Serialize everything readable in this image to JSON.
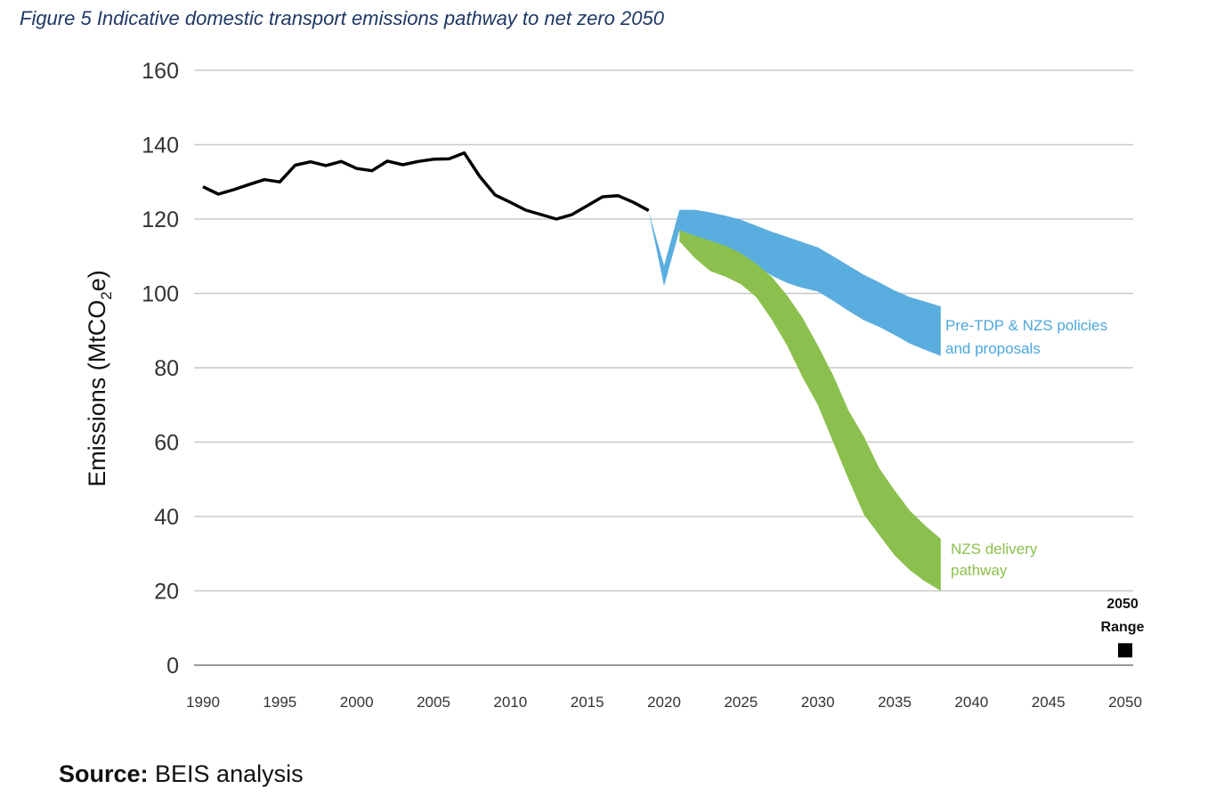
{
  "figure_title": "Figure 5 Indicative domestic transport emissions pathway to net zero 2050",
  "source": {
    "label": "Source:",
    "text": " BEIS analysis"
  },
  "colors": {
    "historic": "#000000",
    "blue_band": "#5aaedf",
    "green_band": "#8cc04e",
    "grid": "#c8c8c8",
    "title": "#1f3864"
  },
  "chart_data": {
    "type": "line",
    "title": "",
    "xlabel": "",
    "ylabel_main": "Emissions (MtCO",
    "ylabel_sub": "2",
    "ylabel_end": "e)",
    "xlim": [
      1990,
      2050
    ],
    "ylim": [
      0,
      160
    ],
    "x_ticks": [
      1990,
      1995,
      2000,
      2005,
      2010,
      2015,
      2020,
      2025,
      2030,
      2035,
      2040,
      2045,
      2050
    ],
    "y_ticks": [
      0,
      20,
      40,
      60,
      80,
      100,
      120,
      140,
      160
    ],
    "grid": true,
    "series": [
      {
        "x": [
          1990,
          1991,
          1992,
          1993,
          1994,
          1995,
          1996,
          1997,
          1998,
          1999,
          2000,
          2001,
          2002,
          2003,
          2004,
          2005,
          2006,
          2007,
          2008,
          2009,
          2010,
          2011,
          2012,
          2013,
          2014,
          2015,
          2016,
          2017,
          2018,
          2019
        ],
        "values": [
          128.7,
          126.7,
          127.9,
          129.3,
          130.6,
          130.0,
          134.5,
          135.4,
          134.4,
          135.5,
          133.6,
          133.0,
          135.6,
          134.6,
          135.5,
          136.1,
          136.2,
          137.8,
          131.5,
          126.5,
          124.5,
          122.4,
          121.2,
          120.0,
          121.2,
          123.6,
          126.0,
          126.3,
          124.5,
          122.3
        ]
      },
      {
        "name": "Pre-TDP & NZS policies and proposals",
        "x": [
          2019,
          2020,
          2021,
          2022,
          2023,
          2024,
          2025,
          2026,
          2027,
          2028,
          2029,
          2030,
          2031,
          2032,
          2033,
          2034,
          2035,
          2036,
          2037,
          2038
        ],
        "upper": [
          122.0,
          107.5,
          122.5,
          122.5,
          121.8,
          120.9,
          119.8,
          118.2,
          116.6,
          115.2,
          113.8,
          112.4,
          110.0,
          107.5,
          105.0,
          103.0,
          100.8,
          99.0,
          97.8,
          96.5
        ],
        "lower": [
          122.0,
          102.0,
          117.0,
          114.5,
          113.2,
          111.8,
          110.0,
          107.5,
          104.8,
          102.8,
          101.5,
          100.5,
          98.0,
          95.3,
          92.8,
          91.0,
          88.8,
          86.5,
          84.8,
          83.2
        ]
      },
      {
        "name": "NZS delivery pathway",
        "x": [
          2021,
          2022,
          2023,
          2024,
          2025,
          2026,
          2027,
          2028,
          2029,
          2030,
          2031,
          2032,
          2033,
          2034,
          2035,
          2036,
          2037,
          2038
        ],
        "upper": [
          117.0,
          115.5,
          114.2,
          112.8,
          110.8,
          108.0,
          104.5,
          99.5,
          93.5,
          86.0,
          78.0,
          68.5,
          61.5,
          53.0,
          47.0,
          41.5,
          37.5,
          34.0
        ],
        "lower": [
          114.0,
          109.5,
          106.0,
          104.5,
          102.5,
          99.0,
          93.0,
          86.0,
          77.5,
          70.0,
          60.0,
          50.0,
          40.5,
          35.0,
          29.5,
          25.5,
          22.5,
          20.0
        ]
      },
      {
        "name": "2050 Range",
        "x": [
          2050
        ],
        "values": [
          4
        ]
      }
    ],
    "annotations": [
      {
        "lines": [
          "Pre-TDP & NZS policies",
          "and proposals"
        ]
      },
      {
        "lines": [
          "NZS delivery",
          "pathway"
        ]
      },
      {
        "lines": [
          "2050",
          "Range"
        ]
      }
    ]
  }
}
